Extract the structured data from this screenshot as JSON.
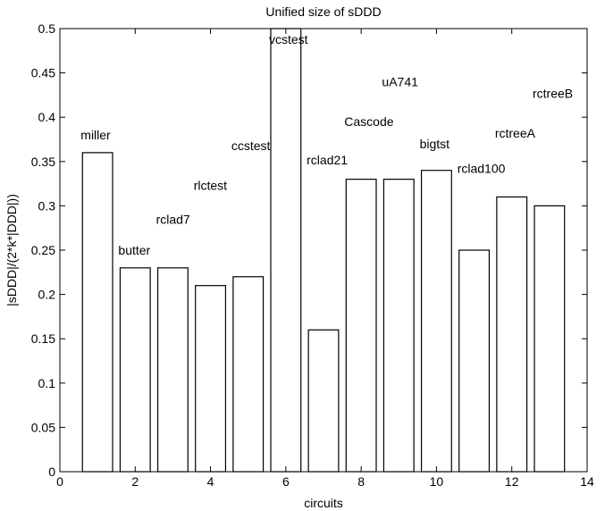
{
  "chart_data": {
    "type": "bar",
    "title": "Unified size of sDDD",
    "xlabel": "circuits",
    "ylabel": "|sDDD|/(2*k*|DDD|))",
    "xlim": [
      0,
      14
    ],
    "ylim": [
      0,
      0.5
    ],
    "xticks": [
      "0",
      "2",
      "4",
      "6",
      "8",
      "10",
      "12",
      "14"
    ],
    "yticks": [
      "0",
      "0.05",
      "0.1",
      "0.15",
      "0.2",
      "0.25",
      "0.3",
      "0.35",
      "0.4",
      "0.45",
      "0.5"
    ],
    "bar_width": 0.8,
    "bars": [
      {
        "x": 1,
        "value": 0.36,
        "label": "miller",
        "label_y": 0.38
      },
      {
        "x": 2,
        "value": 0.23,
        "label": "butter",
        "label_y": 0.25
      },
      {
        "x": 3,
        "value": 0.23,
        "label": "rclad7",
        "label_y": 0.285
      },
      {
        "x": 4,
        "value": 0.21,
        "label": "rlctest",
        "label_y": 0.323
      },
      {
        "x": 5,
        "value": 0.22,
        "label": "ccstest",
        "label_y": 0.368
      },
      {
        "x": 6,
        "value": 0.5,
        "label": "vcstest",
        "label_y": 0.488
      },
      {
        "x": 7,
        "value": 0.16,
        "label": "rclad21",
        "label_y": 0.352
      },
      {
        "x": 8,
        "value": 0.33,
        "label": "Cascode",
        "label_y": 0.395
      },
      {
        "x": 9,
        "value": 0.33,
        "label": "uA741",
        "label_y": 0.44
      },
      {
        "x": 10,
        "value": 0.34,
        "label": "bigtst",
        "label_y": 0.37
      },
      {
        "x": 11,
        "value": 0.25,
        "label": "rclad100",
        "label_y": 0.342
      },
      {
        "x": 12,
        "value": 0.31,
        "label": "rctreeA",
        "label_y": 0.382
      },
      {
        "x": 13,
        "value": 0.3,
        "label": "rctreeB",
        "label_y": 0.427
      }
    ],
    "grid": false,
    "legend": "none"
  }
}
